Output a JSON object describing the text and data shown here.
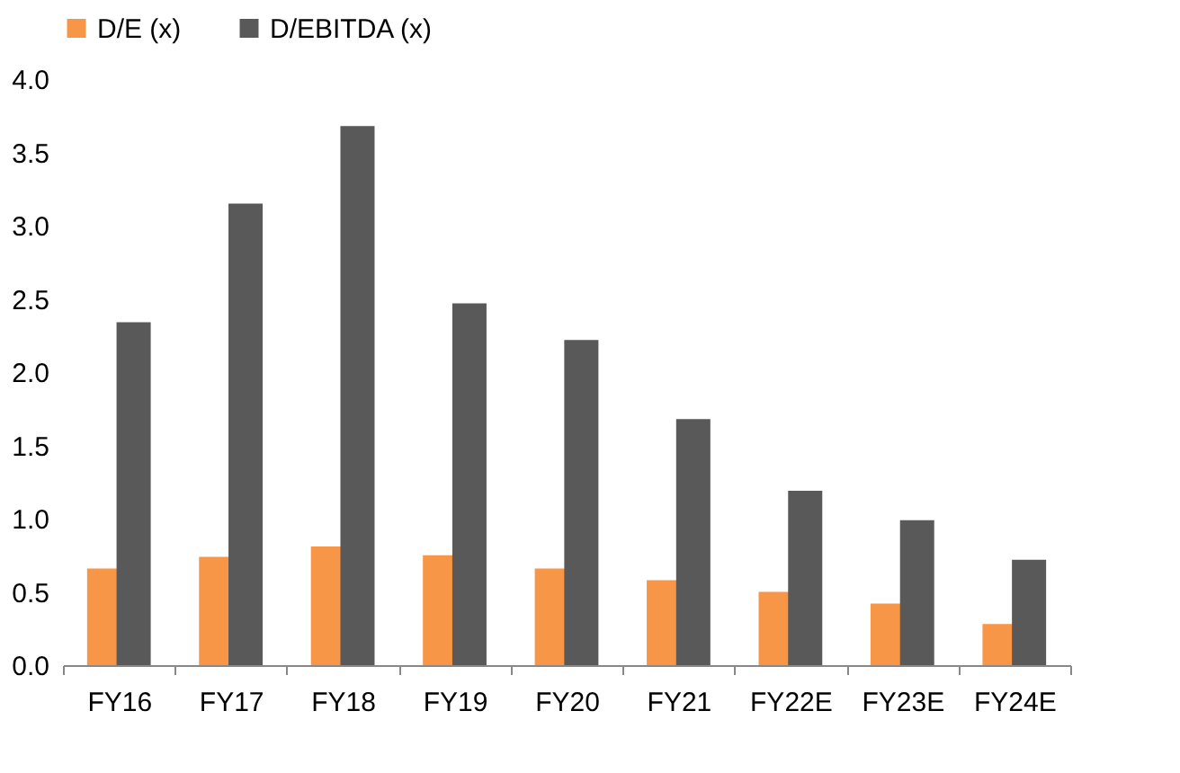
{
  "chart_data": {
    "type": "bar",
    "categories": [
      "FY16",
      "FY17",
      "FY18",
      "FY19",
      "FY20",
      "FY21",
      "FY22E",
      "FY23E",
      "FY24E"
    ],
    "series": [
      {
        "name": "D/E (x)",
        "color": "#f79646",
        "values": [
          0.66,
          0.74,
          0.81,
          0.75,
          0.66,
          0.58,
          0.5,
          0.42,
          0.28
        ]
      },
      {
        "name": "D/EBITDA (x)",
        "color": "#595959",
        "values": [
          2.34,
          3.15,
          3.68,
          2.47,
          2.22,
          1.68,
          1.19,
          0.99,
          0.72
        ]
      }
    ],
    "ylim": [
      0,
      4
    ],
    "yticks": [
      {
        "value": 0,
        "label": "0.0"
      },
      {
        "value": 0.5,
        "label": "0.5"
      },
      {
        "value": 1,
        "label": "1.0"
      },
      {
        "value": 1.5,
        "label": "1.5"
      },
      {
        "value": 2,
        "label": "2.0"
      },
      {
        "value": 2.5,
        "label": "2.5"
      },
      {
        "value": 3,
        "label": "3.0"
      },
      {
        "value": 3.5,
        "label": "3.5"
      },
      {
        "value": 4,
        "label": "4.0"
      }
    ],
    "grid": false,
    "legend": "top"
  }
}
